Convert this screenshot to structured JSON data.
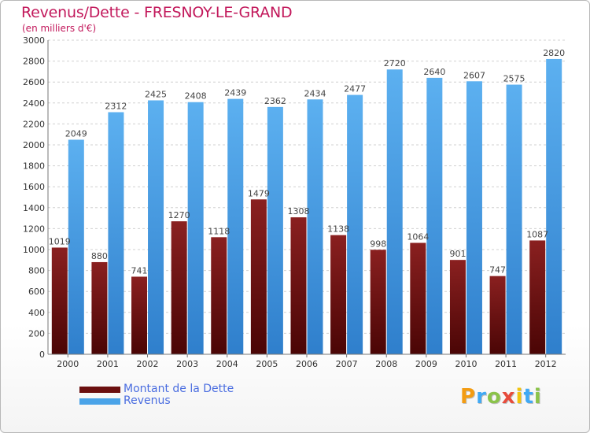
{
  "header": {
    "title": "Revenus/Dette - FRESNOY-LE-GRAND",
    "subtitle": "(en milliers d'€)"
  },
  "legend": {
    "items": [
      {
        "label": "Montant de la Dette",
        "color": "#6b0f0f"
      },
      {
        "label": "Revenus",
        "color": "#4aa3e8"
      }
    ]
  },
  "logo": {
    "text": "Proxiti",
    "colors": [
      "#f39c12",
      "#3fa9f5",
      "#8bc34a",
      "#e74c3c",
      "#f1c40f",
      "#3fa9f5",
      "#8bc34a"
    ]
  },
  "chart_data": {
    "type": "bar",
    "title": "Revenus/Dette - FRESNOY-LE-GRAND",
    "ylabel": "",
    "xlabel": "",
    "categories": [
      "2000",
      "2001",
      "2002",
      "2003",
      "2004",
      "2005",
      "2006",
      "2007",
      "2008",
      "2009",
      "2010",
      "2011",
      "2012"
    ],
    "series": [
      {
        "name": "Montant de la Dette",
        "color": "#7a1515",
        "values": [
          1019,
          880,
          741,
          1270,
          1118,
          1479,
          1308,
          1138,
          998,
          1064,
          901,
          747,
          1087
        ],
        "labels": [
          "1019",
          "880",
          "741",
          "1270",
          "1118",
          "1479",
          "1308",
          "1138",
          "998",
          "1064",
          "901",
          "747",
          "1087"
        ]
      },
      {
        "name": "Revenus",
        "color": "#4aa3e8",
        "values": [
          2049,
          2312,
          2425,
          2408,
          2439,
          2362,
          2434,
          2477,
          2720,
          2640,
          2607,
          2575,
          2820
        ],
        "labels": [
          "2049",
          "2312",
          "2425",
          "2408",
          "2439",
          "2362",
          "2434",
          "2477",
          "2720",
          "2640",
          "2607",
          "2575",
          "2820"
        ]
      }
    ],
    "ylim": [
      0,
      3000
    ],
    "yticks": [
      "0",
      "200",
      "400",
      "600",
      "800",
      "1000",
      "1200",
      "1400",
      "1600",
      "1800",
      "2000",
      "2200",
      "2400",
      "2600",
      "2800",
      "3000"
    ],
    "grid": true,
    "legend_position": "bottom-left"
  }
}
